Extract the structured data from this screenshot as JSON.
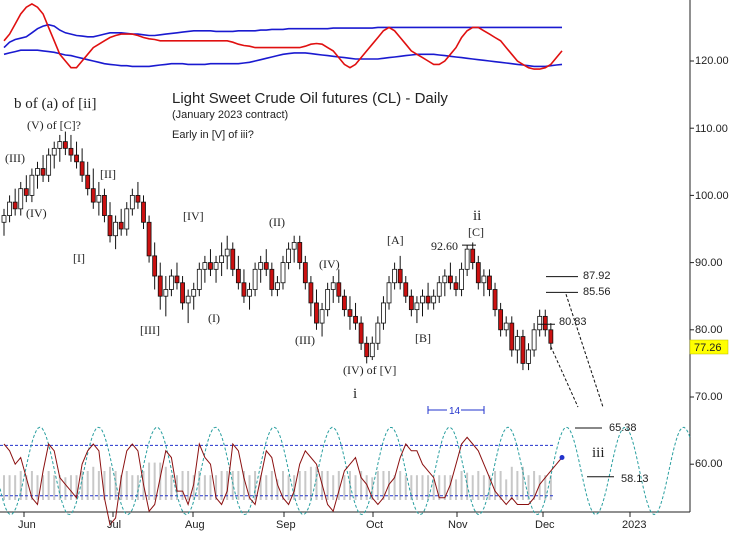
{
  "chart_data": {
    "type": "candlestick",
    "title": "Light Sweet Crude Oil futures (CL) - Daily",
    "subtitle": "(January 2023 contract)",
    "note": "Early in [V] of iii?",
    "x_labels": [
      "Jun",
      "Jul",
      "Aug",
      "Sep",
      "Oct",
      "Nov",
      "Dec",
      "2023"
    ],
    "y_ticks": [
      "120.00",
      "110.00",
      "100.00",
      "90.00",
      "80.00",
      "70.00",
      "60.00"
    ],
    "ylim": [
      50,
      131
    ],
    "last_price": "77.26",
    "candles": [
      {
        "o": 96,
        "h": 98,
        "l": 94,
        "c": 97
      },
      {
        "o": 97,
        "h": 100,
        "l": 96,
        "c": 99
      },
      {
        "o": 99,
        "h": 101,
        "l": 97,
        "c": 98
      },
      {
        "o": 98,
        "h": 102,
        "l": 97,
        "c": 101
      },
      {
        "o": 101,
        "h": 103,
        "l": 99,
        "c": 100
      },
      {
        "o": 100,
        "h": 104,
        "l": 99,
        "c": 103
      },
      {
        "o": 103,
        "h": 105,
        "l": 101,
        "c": 104
      },
      {
        "o": 104,
        "h": 106,
        "l": 102,
        "c": 103
      },
      {
        "o": 103,
        "h": 107,
        "l": 102,
        "c": 106
      },
      {
        "o": 106,
        "h": 108,
        "l": 104,
        "c": 107
      },
      {
        "o": 107,
        "h": 109,
        "l": 105,
        "c": 108
      },
      {
        "o": 108,
        "h": 109.5,
        "l": 106,
        "c": 107
      },
      {
        "o": 107,
        "h": 109,
        "l": 105,
        "c": 106
      },
      {
        "o": 106,
        "h": 108,
        "l": 104,
        "c": 105
      },
      {
        "o": 105,
        "h": 107,
        "l": 102,
        "c": 103
      },
      {
        "o": 103,
        "h": 105,
        "l": 100,
        "c": 101
      },
      {
        "o": 101,
        "h": 104,
        "l": 98,
        "c": 99
      },
      {
        "o": 99,
        "h": 102,
        "l": 97,
        "c": 100
      },
      {
        "o": 100,
        "h": 101,
        "l": 96,
        "c": 97
      },
      {
        "o": 97,
        "h": 99,
        "l": 93,
        "c": 94
      },
      {
        "o": 94,
        "h": 97,
        "l": 92,
        "c": 96
      },
      {
        "o": 96,
        "h": 98,
        "l": 94,
        "c": 95
      },
      {
        "o": 95,
        "h": 99,
        "l": 94,
        "c": 98
      },
      {
        "o": 98,
        "h": 101,
        "l": 97,
        "c": 100
      },
      {
        "o": 100,
        "h": 102,
        "l": 98,
        "c": 99
      },
      {
        "o": 99,
        "h": 100,
        "l": 95,
        "c": 96
      },
      {
        "o": 96,
        "h": 97,
        "l": 90,
        "c": 91
      },
      {
        "o": 91,
        "h": 93,
        "l": 86,
        "c": 88
      },
      {
        "o": 88,
        "h": 90,
        "l": 83,
        "c": 85
      },
      {
        "o": 85,
        "h": 88,
        "l": 82,
        "c": 86
      },
      {
        "o": 86,
        "h": 89,
        "l": 85,
        "c": 88
      },
      {
        "o": 88,
        "h": 90,
        "l": 86,
        "c": 87
      },
      {
        "o": 87,
        "h": 88,
        "l": 83,
        "c": 84
      },
      {
        "o": 84,
        "h": 86,
        "l": 81,
        "c": 85
      },
      {
        "o": 85,
        "h": 87,
        "l": 83,
        "c": 86
      },
      {
        "o": 86,
        "h": 90,
        "l": 85,
        "c": 89
      },
      {
        "o": 89,
        "h": 91,
        "l": 87,
        "c": 90
      },
      {
        "o": 90,
        "h": 92,
        "l": 88,
        "c": 89
      },
      {
        "o": 89,
        "h": 91,
        "l": 87,
        "c": 90
      },
      {
        "o": 90,
        "h": 93,
        "l": 88,
        "c": 91
      },
      {
        "o": 91,
        "h": 94,
        "l": 89,
        "c": 92
      },
      {
        "o": 92,
        "h": 93,
        "l": 88,
        "c": 89
      },
      {
        "o": 89,
        "h": 91,
        "l": 86,
        "c": 87
      },
      {
        "o": 87,
        "h": 89,
        "l": 84,
        "c": 85
      },
      {
        "o": 85,
        "h": 87,
        "l": 83,
        "c": 86
      },
      {
        "o": 86,
        "h": 90,
        "l": 85,
        "c": 89
      },
      {
        "o": 89,
        "h": 91,
        "l": 87,
        "c": 90
      },
      {
        "o": 90,
        "h": 92,
        "l": 88,
        "c": 89
      },
      {
        "o": 89,
        "h": 90,
        "l": 85,
        "c": 86
      },
      {
        "o": 86,
        "h": 88,
        "l": 85,
        "c": 87
      },
      {
        "o": 87,
        "h": 91,
        "l": 86,
        "c": 90
      },
      {
        "o": 90,
        "h": 93,
        "l": 89,
        "c": 92
      },
      {
        "o": 92,
        "h": 94,
        "l": 90,
        "c": 93
      },
      {
        "o": 93,
        "h": 94,
        "l": 89,
        "c": 90
      },
      {
        "o": 90,
        "h": 91,
        "l": 86,
        "c": 87
      },
      {
        "o": 87,
        "h": 88,
        "l": 82,
        "c": 84
      },
      {
        "o": 84,
        "h": 86,
        "l": 80,
        "c": 81
      },
      {
        "o": 81,
        "h": 84,
        "l": 79,
        "c": 83
      },
      {
        "o": 83,
        "h": 87,
        "l": 82,
        "c": 86
      },
      {
        "o": 86,
        "h": 88,
        "l": 84,
        "c": 87
      },
      {
        "o": 87,
        "h": 89,
        "l": 84,
        "c": 85
      },
      {
        "o": 85,
        "h": 86,
        "l": 82,
        "c": 83
      },
      {
        "o": 83,
        "h": 85,
        "l": 80,
        "c": 82
      },
      {
        "o": 82,
        "h": 84,
        "l": 80,
        "c": 81
      },
      {
        "o": 81,
        "h": 82,
        "l": 77,
        "c": 78
      },
      {
        "o": 78,
        "h": 79,
        "l": 75,
        "c": 76
      },
      {
        "o": 76,
        "h": 79,
        "l": 75.5,
        "c": 78
      },
      {
        "o": 78,
        "h": 82,
        "l": 77,
        "c": 81
      },
      {
        "o": 81,
        "h": 85,
        "l": 80,
        "c": 84
      },
      {
        "o": 84,
        "h": 88,
        "l": 83,
        "c": 87
      },
      {
        "o": 87,
        "h": 90,
        "l": 86,
        "c": 89
      },
      {
        "o": 89,
        "h": 91,
        "l": 86,
        "c": 87
      },
      {
        "o": 87,
        "h": 88,
        "l": 84,
        "c": 85
      },
      {
        "o": 85,
        "h": 86,
        "l": 82,
        "c": 83
      },
      {
        "o": 83,
        "h": 85,
        "l": 81,
        "c": 84
      },
      {
        "o": 84,
        "h": 86,
        "l": 82,
        "c": 85
      },
      {
        "o": 85,
        "h": 87,
        "l": 83,
        "c": 84
      },
      {
        "o": 84,
        "h": 86,
        "l": 83,
        "c": 85
      },
      {
        "o": 85,
        "h": 88,
        "l": 84,
        "c": 87
      },
      {
        "o": 87,
        "h": 89,
        "l": 85,
        "c": 88
      },
      {
        "o": 88,
        "h": 90,
        "l": 86,
        "c": 87
      },
      {
        "o": 87,
        "h": 88,
        "l": 85,
        "c": 86
      },
      {
        "o": 86,
        "h": 90,
        "l": 85,
        "c": 89
      },
      {
        "o": 89,
        "h": 92.6,
        "l": 88,
        "c": 92
      },
      {
        "o": 92,
        "h": 93,
        "l": 89,
        "c": 90
      },
      {
        "o": 90,
        "h": 91,
        "l": 86,
        "c": 87
      },
      {
        "o": 87,
        "h": 89,
        "l": 85,
        "c": 88
      },
      {
        "o": 88,
        "h": 89,
        "l": 85,
        "c": 86
      },
      {
        "o": 86,
        "h": 87,
        "l": 82,
        "c": 83
      },
      {
        "o": 83,
        "h": 84,
        "l": 79,
        "c": 80
      },
      {
        "o": 80,
        "h": 82,
        "l": 79,
        "c": 81
      },
      {
        "o": 81,
        "h": 82,
        "l": 76,
        "c": 77
      },
      {
        "o": 77,
        "h": 80,
        "l": 75,
        "c": 79
      },
      {
        "o": 79,
        "h": 80,
        "l": 74,
        "c": 75
      },
      {
        "o": 75,
        "h": 78,
        "l": 74,
        "c": 77
      },
      {
        "o": 77,
        "h": 81,
        "l": 76,
        "c": 80
      },
      {
        "o": 80,
        "h": 83,
        "l": 79,
        "c": 82
      },
      {
        "o": 82,
        "h": 83,
        "l": 79,
        "c": 80
      },
      {
        "o": 80,
        "h": 81,
        "l": 77,
        "c": 78
      }
    ],
    "indicator_top": {
      "line1": [
        122,
        122.8,
        123.2,
        123.4,
        123.6,
        124.2,
        124.8,
        125.2,
        125.4,
        125.2,
        124.6,
        124.2,
        124,
        123.8,
        123.7,
        123.6,
        123.6,
        123.8,
        124,
        124.2,
        124.2,
        124.2,
        124.1,
        124,
        124,
        123.9,
        123.8,
        123.8,
        123.9,
        124,
        124.1,
        124.2,
        124.3,
        124.4,
        124.5,
        124.5,
        124.5,
        124.5,
        124.4,
        124.4,
        124.4,
        124.4,
        124.5,
        124.5,
        124.5,
        124.5,
        124.6,
        124.6,
        124.7,
        124.7,
        124.7,
        124.8,
        124.8,
        124.8,
        124.8,
        124.8,
        124.8,
        124.8,
        124.8,
        124.9,
        124.9,
        124.9,
        124.9,
        124.9,
        124.9,
        124.9,
        124.9,
        125,
        125,
        125,
        125,
        125,
        125,
        125,
        125,
        125,
        125,
        125,
        125,
        125,
        125,
        125,
        125,
        125,
        125,
        125,
        125,
        125,
        125,
        125,
        125,
        125,
        125,
        125,
        125,
        125,
        125,
        125,
        125,
        125,
        125
      ],
      "line2": [
        121,
        121.2,
        121.4,
        121.6,
        121.6,
        121.6,
        121.6,
        121.5,
        121.4,
        121.3,
        121.1,
        120.9,
        120.8,
        120.6,
        120.4,
        120.2,
        120,
        119.8,
        119.6,
        119.5,
        119.4,
        119.3,
        119.3,
        119.2,
        119.2,
        119.2,
        119.2,
        119.3,
        119.4,
        119.5,
        119.6,
        119.6,
        119.6,
        119.5,
        119.5,
        119.5,
        119.5,
        119.6,
        119.6,
        119.6,
        119.6,
        119.6,
        119.6,
        119.7,
        119.8,
        120,
        120.2,
        120.4,
        120.6,
        120.8,
        121,
        121.1,
        121.2,
        121.2,
        121.2,
        121.1,
        121,
        120.9,
        120.8,
        120.7,
        120.6,
        120.5,
        120.4,
        120.3,
        120.3,
        120.3,
        120.3,
        120.3,
        120.4,
        120.5,
        120.6,
        120.7,
        120.8,
        120.9,
        121,
        121,
        121,
        121,
        120.9,
        120.8,
        120.7,
        120.6,
        120.5,
        120.4,
        120.3,
        120.2,
        120.1,
        120,
        119.9,
        119.8,
        119.7,
        119.6,
        119.5,
        119.4,
        119.3,
        119.2,
        119.2,
        119.2,
        119.3,
        119.4,
        119.5
      ],
      "red": [
        123,
        124,
        125.5,
        127,
        128,
        128.5,
        128,
        127,
        125,
        123,
        121,
        120,
        119,
        119,
        120,
        121,
        122,
        122.5,
        123,
        123.5,
        123.8,
        124,
        124,
        124,
        123.8,
        123.5,
        123.3,
        123.2,
        123,
        123,
        123,
        123,
        123,
        123,
        123,
        123,
        123,
        123,
        123,
        123,
        123,
        122.8,
        122.5,
        122.3,
        122.2,
        122,
        122,
        122,
        122,
        122,
        122,
        122,
        122,
        122,
        122.2,
        122.5,
        122.6,
        122.5,
        122,
        121.5,
        120.5,
        119.5,
        119,
        119.5,
        120.5,
        121.5,
        122.5,
        123.5,
        124.5,
        125,
        124.5,
        123.5,
        122.5,
        121.5,
        121,
        120.5,
        120,
        119.5,
        119.5,
        120,
        121,
        122,
        123.5,
        124.5,
        125,
        125,
        124.5,
        124,
        123.5,
        123,
        122,
        121,
        120,
        119.5,
        119,
        118.8,
        118.8,
        119,
        119.5,
        120.5,
        121.5
      ]
    },
    "cycle_osc": {
      "red": [
        63,
        62,
        60,
        61,
        58,
        55,
        54,
        59,
        63,
        62,
        58,
        57,
        56,
        55,
        60,
        62,
        63,
        62,
        55,
        51,
        52,
        58,
        62,
        63,
        62,
        57,
        53,
        54,
        58,
        62,
        61,
        56,
        56,
        54,
        57,
        63,
        61,
        60,
        55,
        54,
        56,
        63,
        62,
        58,
        55,
        54,
        58,
        62,
        61,
        57,
        55,
        54,
        56,
        60,
        62,
        61,
        60,
        57,
        54,
        53,
        56,
        59,
        60,
        61,
        58,
        57,
        55,
        54,
        55,
        57,
        58,
        61,
        63,
        62,
        62,
        60,
        59,
        58,
        55,
        55,
        57,
        60,
        63,
        64,
        63,
        62,
        60,
        58,
        56,
        55,
        54,
        55,
        54,
        54,
        54,
        55,
        57,
        58,
        59,
        60,
        61
      ]
    },
    "wave_labels": [
      {
        "text": "b of (a) of [ii]",
        "big": true
      },
      {
        "text": "(V) of [C]?"
      },
      {
        "text": "(III)"
      },
      {
        "text": "(IV)"
      },
      {
        "text": "[I]"
      },
      {
        "text": "[II]"
      },
      {
        "text": "[III]"
      },
      {
        "text": "[IV]"
      },
      {
        "text": "(I)"
      },
      {
        "text": "(II)"
      },
      {
        "text": "(III)"
      },
      {
        "text": "(IV)"
      },
      {
        "text": "(IV) of [V]"
      },
      {
        "text": "i",
        "big": true
      },
      {
        "text": "[A]"
      },
      {
        "text": "[B]"
      },
      {
        "text": "[C]"
      },
      {
        "text": "ii",
        "big": true
      },
      {
        "text": "92.60"
      },
      {
        "text": "iii",
        "big": true
      }
    ],
    "targets": [
      "87.92",
      "85.56",
      "80.83",
      "65.38",
      "58.13"
    ],
    "cycle_length_label": "14"
  }
}
